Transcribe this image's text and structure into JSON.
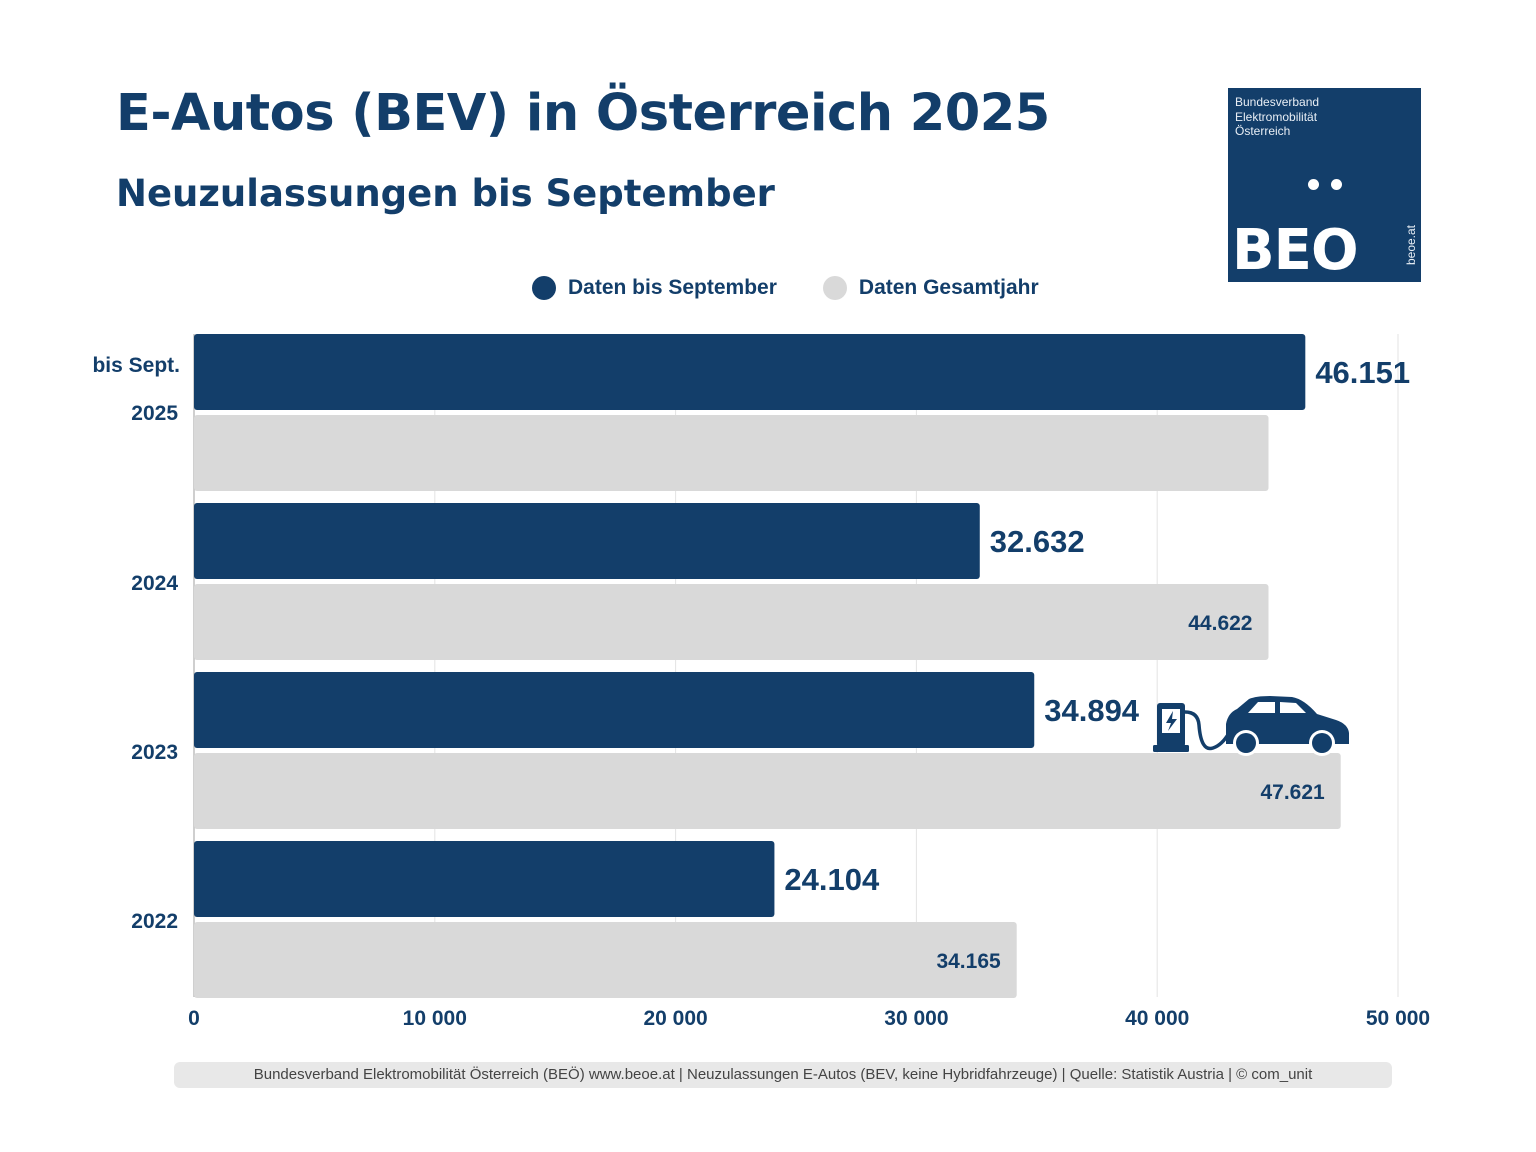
{
  "header": {
    "title": "E-Autos (BEV) in Österreich 2025",
    "subtitle": "Neuzulassungen bis September"
  },
  "logo": {
    "org_lines": [
      "Bundesverband",
      "Elektromobilität",
      "Österreich"
    ],
    "mark": "BEO",
    "url": "beoe.at"
  },
  "colors": {
    "primary": "#133e6a",
    "secondary": "#d9d9d9",
    "grid": "#e3e3e3"
  },
  "chart_data": {
    "type": "bar",
    "orientation": "horizontal",
    "categories": [
      "2025",
      "2024",
      "2023",
      "2022"
    ],
    "category_prefix": {
      "2025": "bis Sept."
    },
    "series": [
      {
        "name": "Daten bis September",
        "values": [
          46151,
          32632,
          34894,
          24104
        ],
        "labels": [
          "46.151",
          "32.632",
          "34.894",
          "24.104"
        ]
      },
      {
        "name": "Daten Gesamtjahr",
        "values": [
          44622,
          44622,
          47621,
          34165
        ],
        "labels": [
          "",
          "44.622",
          "47.621",
          "34.165"
        ]
      }
    ],
    "xlim": [
      0,
      50000
    ],
    "xticks": [
      0,
      10000,
      20000,
      30000,
      40000,
      50000
    ],
    "xtick_labels": [
      "0",
      "10 000",
      "20 000",
      "30 000",
      "40 000",
      "50 000"
    ],
    "grid": true,
    "legend_position": "top-center",
    "annotation_icon": "charging-car-icon"
  },
  "footer": {
    "text": "Bundesverband Elektromobilität Österreich (BEÖ) www.beoe.at | Neuzulassungen E-Autos (BEV, keine Hybridfahrzeuge) | Quelle: Statistik Austria | © com_unit"
  }
}
